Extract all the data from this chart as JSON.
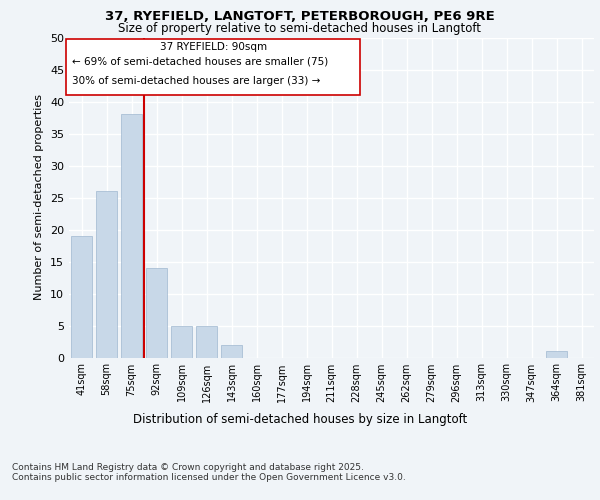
{
  "title1": "37, RYEFIELD, LANGTOFT, PETERBOROUGH, PE6 9RE",
  "title2": "Size of property relative to semi-detached houses in Langtoft",
  "xlabel": "Distribution of semi-detached houses by size in Langtoft",
  "ylabel": "Number of semi-detached properties",
  "categories": [
    "41sqm",
    "58sqm",
    "75sqm",
    "92sqm",
    "109sqm",
    "126sqm",
    "143sqm",
    "160sqm",
    "177sqm",
    "194sqm",
    "211sqm",
    "228sqm",
    "245sqm",
    "262sqm",
    "279sqm",
    "296sqm",
    "313sqm",
    "330sqm",
    "347sqm",
    "364sqm",
    "381sqm"
  ],
  "values": [
    19,
    26,
    38,
    14,
    5,
    5,
    2,
    0,
    0,
    0,
    0,
    0,
    0,
    0,
    0,
    0,
    0,
    0,
    0,
    1,
    0
  ],
  "bar_color": "#c8d8e8",
  "bar_edge_color": "#a0b8d0",
  "vline_label": "37 RYEFIELD: 90sqm",
  "annotation_line1": "← 69% of semi-detached houses are smaller (75)",
  "annotation_line2": "30% of semi-detached houses are larger (33) →",
  "vline_color": "#cc0000",
  "ylim": [
    0,
    50
  ],
  "yticks": [
    0,
    5,
    10,
    15,
    20,
    25,
    30,
    35,
    40,
    45,
    50
  ],
  "background_color": "#f0f4f8",
  "grid_color": "#ffffff",
  "footer1": "Contains HM Land Registry data © Crown copyright and database right 2025.",
  "footer2": "Contains public sector information licensed under the Open Government Licence v3.0."
}
